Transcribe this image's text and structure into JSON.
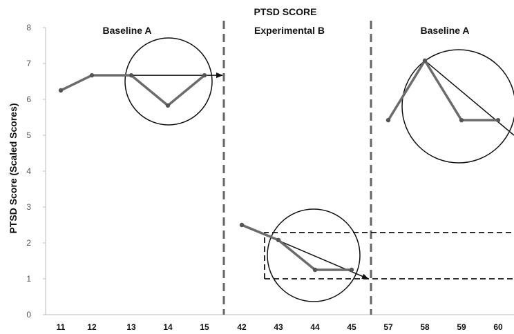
{
  "chart_data": {
    "type": "line",
    "title": "PTSD SCORE",
    "ylabel": "PTSD Score (Scaled Scores)",
    "xlabel": "",
    "ylim": [
      0,
      8
    ],
    "yticks": [
      "0",
      "1",
      "2",
      "3",
      "4",
      "5",
      "6",
      "7",
      "8"
    ],
    "grid": false,
    "phases": [
      {
        "label": "Baseline A",
        "categories": [
          "11",
          "12",
          "13",
          "14",
          "15"
        ],
        "values": [
          6.25,
          6.67,
          6.67,
          5.83,
          6.67
        ],
        "trend_from": "13",
        "trend_y": 6.67
      },
      {
        "label": "Experimental B",
        "categories": [
          "42",
          "43",
          "44",
          "45"
        ],
        "values": [
          2.5,
          2.08,
          1.25,
          1.25
        ],
        "trend_to_y": 1.0
      },
      {
        "label": "Baseline A",
        "categories": [
          "57",
          "58",
          "59",
          "60"
        ],
        "values": [
          5.42,
          7.08,
          5.42,
          5.42
        ],
        "trend_from": "58",
        "trend_to_y": 5.0
      }
    ],
    "colors": {
      "line": "#6b6b6b",
      "marker": "#555555",
      "divider": "#666666",
      "annotation": "#111111"
    }
  }
}
